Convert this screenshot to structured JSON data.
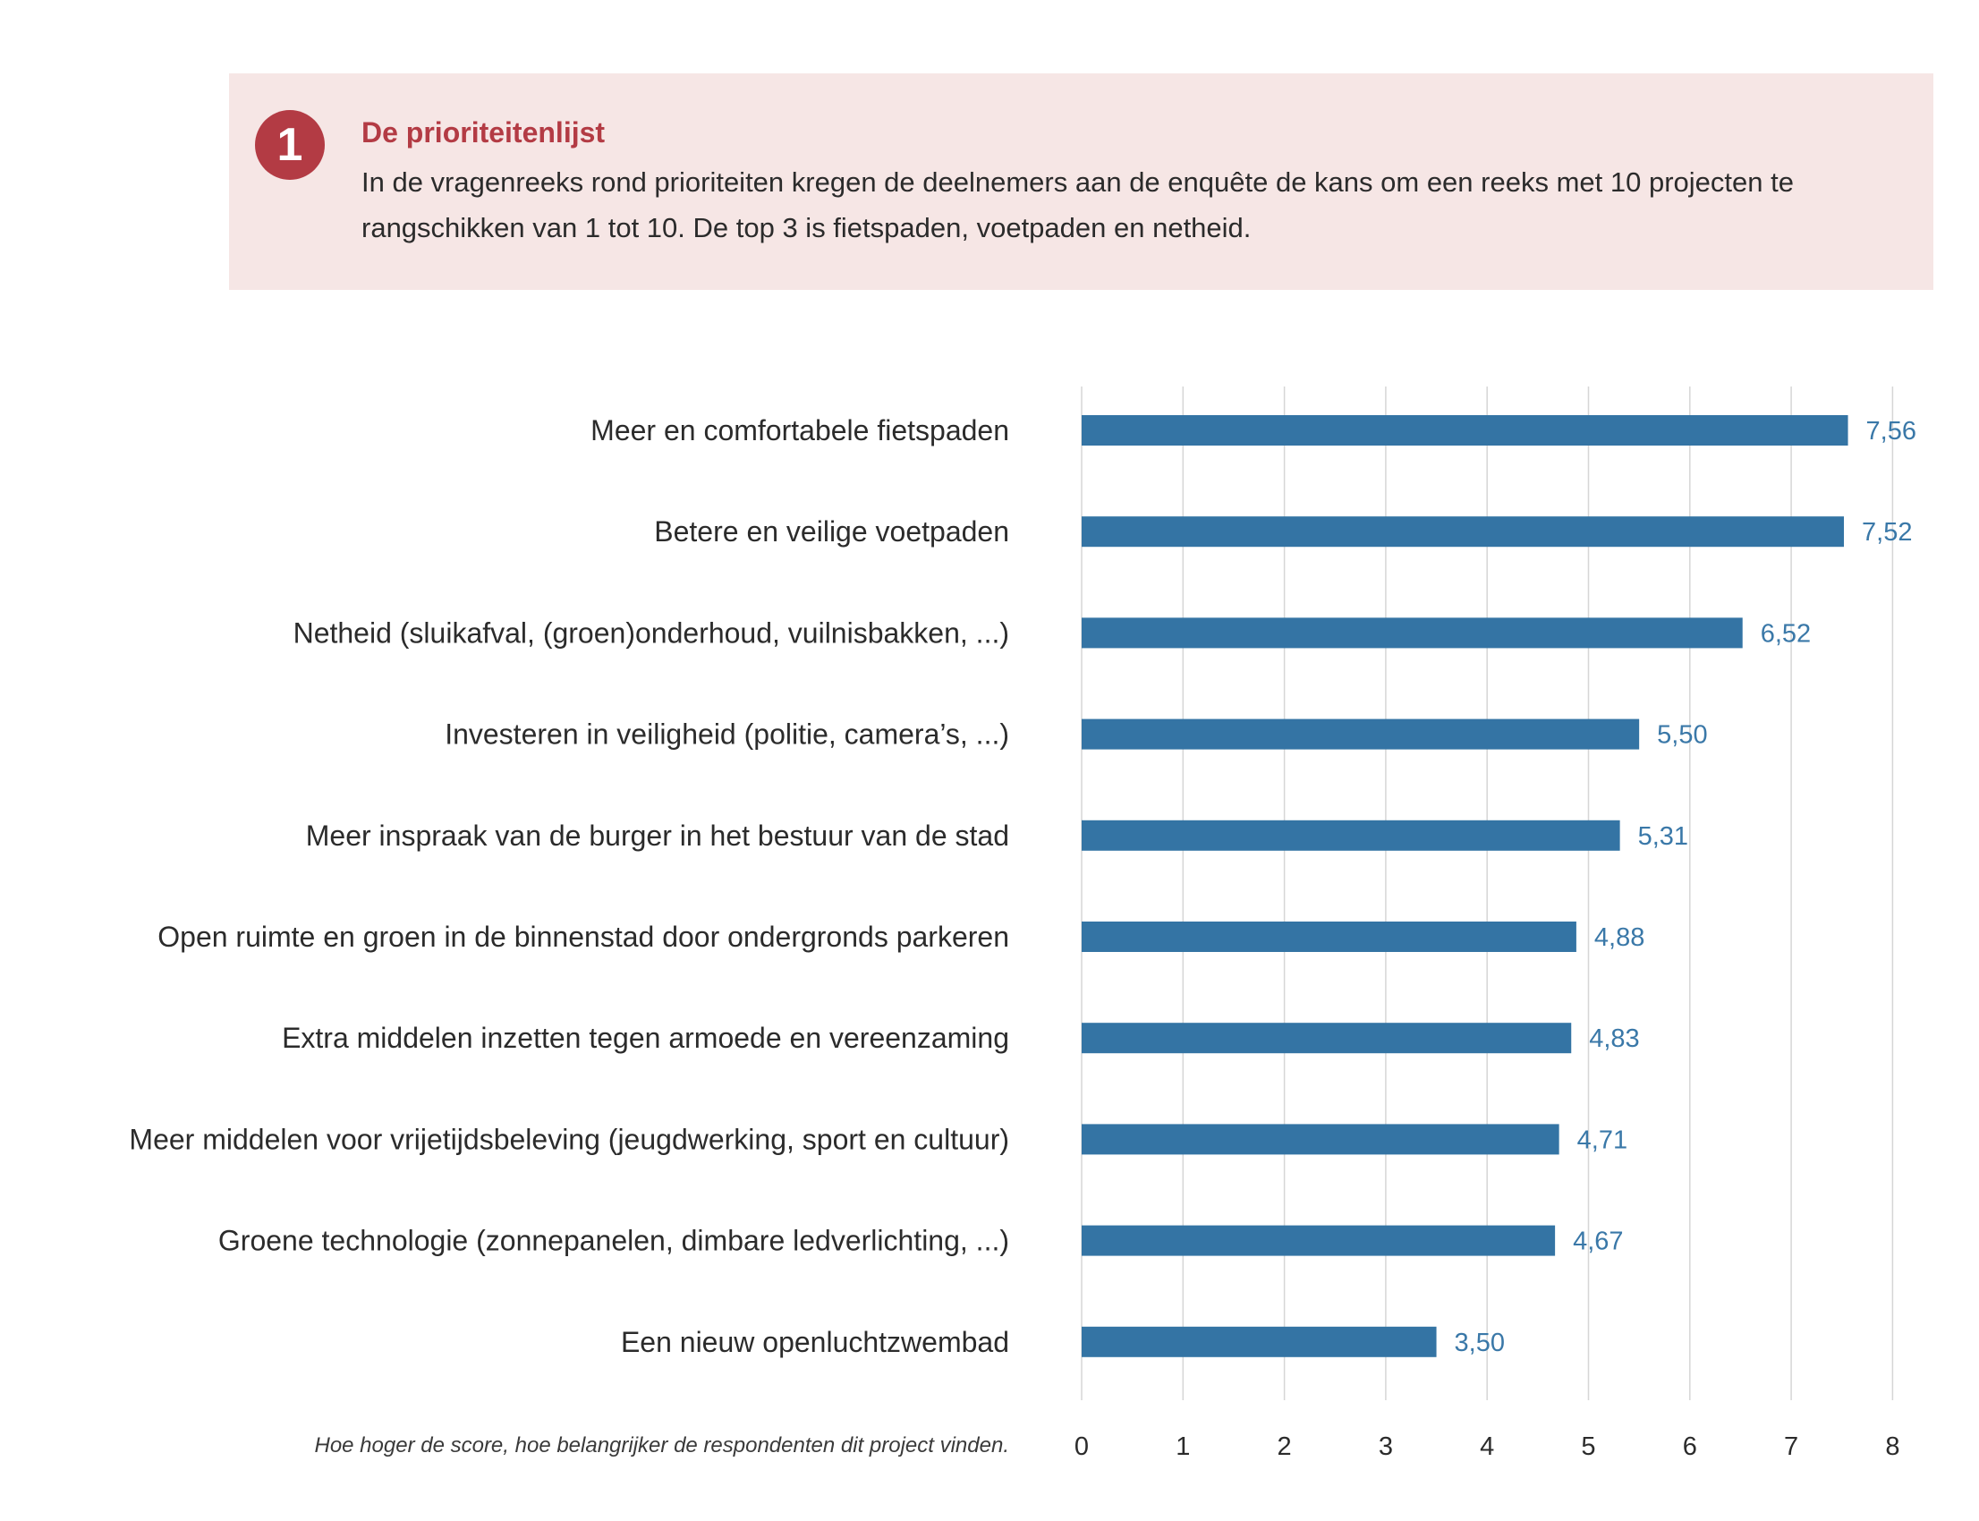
{
  "info": {
    "number": "1",
    "title": "De prioriteitenlijst",
    "text": "In de vragenreeks rond prioriteiten kregen de deelnemers aan de enquête de kans om een reeks met 10 projecten te rangschikken van 1 tot 10. De top 3 is fietspaden, voetpaden en netheid."
  },
  "footnote": "Hoe hoger de score, hoe belangrijker de respondenten dit project vinden.",
  "colors": {
    "bar": "#3474a4",
    "value_label": "#3a78a8",
    "accent": "#b33b44",
    "box_bg": "#f6e6e5"
  },
  "chart_data": {
    "type": "bar",
    "orientation": "horizontal",
    "categories": [
      "Meer en comfortabele fietspaden",
      "Betere en veilige voetpaden",
      "Netheid (sluikafval, (groen)onderhoud, vuilnisbakken, ...)",
      "Investeren in veiligheid (politie, camera’s, ...)",
      "Meer inspraak van de burger in het bestuur van de stad",
      "Open ruimte en groen in de binnenstad door ondergronds parkeren",
      "Extra middelen inzetten tegen armoede en vereenzaming",
      "Meer middelen voor vrijetijdsbeleving (jeugdwerking, sport en cultuur)",
      "Groene technologie (zonnepanelen, dimbare ledverlichting, ...)",
      "Een nieuw openluchtzwembad"
    ],
    "values": [
      7.56,
      7.52,
      6.52,
      5.5,
      5.31,
      4.88,
      4.83,
      4.71,
      4.67,
      3.5
    ],
    "value_labels": [
      "7,56",
      "7,52",
      "6,52",
      "5,50",
      "5,31",
      "4,88",
      "4,83",
      "4,71",
      "4,67",
      "3,50"
    ],
    "xlim": [
      0,
      8
    ],
    "xticks": [
      "0",
      "1",
      "2",
      "3",
      "4",
      "5",
      "6",
      "7",
      "8"
    ],
    "grid": true,
    "title": "",
    "xlabel": "",
    "ylabel": ""
  }
}
